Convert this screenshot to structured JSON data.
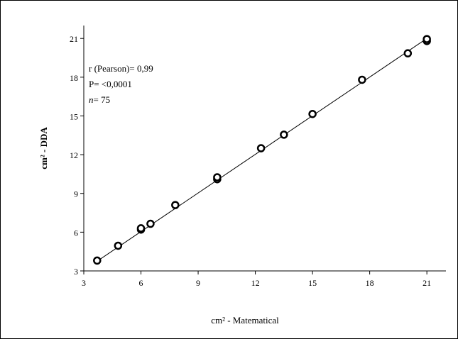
{
  "chart_data": {
    "type": "scatter",
    "xlabel": "cm² - Matematical",
    "ylabel": "cm² - DDA",
    "xlim": [
      3,
      22
    ],
    "ylim": [
      3,
      22
    ],
    "x_ticks": [
      3,
      6,
      9,
      12,
      15,
      18,
      21
    ],
    "y_ticks": [
      3,
      6,
      9,
      12,
      15,
      18,
      21
    ],
    "grid": false,
    "annotations": {
      "pearson": "r (Pearson)= 0,99",
      "p_value": "P= <0,0001",
      "n_label": "n",
      "n_value": "= 75"
    },
    "points": [
      {
        "x": 3.7,
        "y": 3.8
      },
      {
        "x": 4.8,
        "y": 4.95
      },
      {
        "x": 6.0,
        "y": 6.2
      },
      {
        "x": 6.0,
        "y": 6.3
      },
      {
        "x": 6.5,
        "y": 6.65
      },
      {
        "x": 7.8,
        "y": 8.1
      },
      {
        "x": 10.0,
        "y": 10.1
      },
      {
        "x": 10.0,
        "y": 10.25
      },
      {
        "x": 12.3,
        "y": 12.5
      },
      {
        "x": 13.5,
        "y": 13.55
      },
      {
        "x": 15.0,
        "y": 15.15
      },
      {
        "x": 17.6,
        "y": 17.8
      },
      {
        "x": 20.0,
        "y": 19.85
      },
      {
        "x": 21.0,
        "y": 20.8
      },
      {
        "x": 21.0,
        "y": 20.95
      }
    ],
    "trendline": {
      "x": [
        3.7,
        21.0
      ],
      "y": [
        3.75,
        21.0
      ]
    }
  }
}
